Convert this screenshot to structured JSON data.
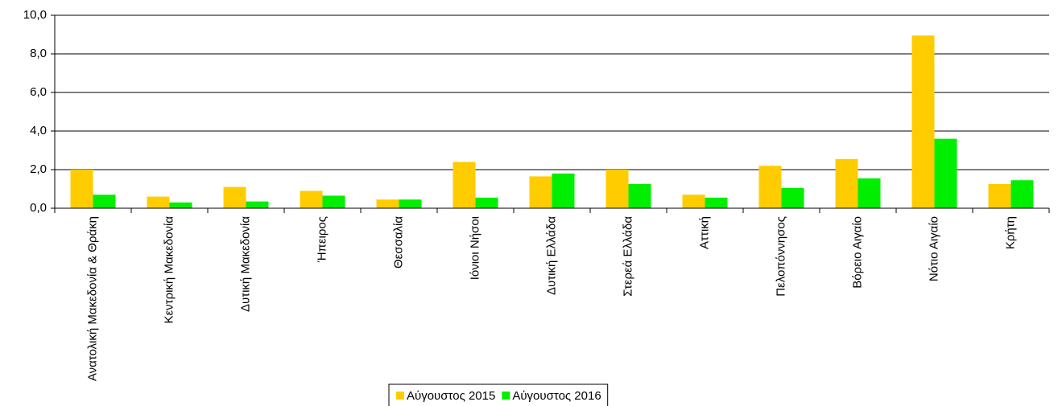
{
  "chart_data": {
    "type": "bar",
    "categories": [
      "Ανατολική Μακεδονία & Θράκη",
      "Κεντρική Μακεδονία",
      "Δυτική Μακεδονία",
      "Ήπειρος",
      "Θεσσαλία",
      "Ιόνιοι Νήσοι",
      "Δυτική Ελλάδα",
      "Στερεά Ελλάδα",
      "Αττική",
      "Πελοπόννησος",
      "Βόρειο Αιγαίο",
      "Νότιο Αιγαίο",
      "Κρήτη"
    ],
    "series": [
      {
        "name": "Αύγουστος 2015",
        "color": "#ffcc00",
        "values": [
          2.0,
          0.6,
          1.1,
          0.9,
          0.45,
          2.4,
          1.65,
          2.0,
          0.7,
          2.2,
          2.55,
          8.95,
          1.25
        ]
      },
      {
        "name": "Αύγουστος 2016",
        "color": "#00ee00",
        "values": [
          0.7,
          0.3,
          0.35,
          0.65,
          0.45,
          0.55,
          1.8,
          1.25,
          0.55,
          1.05,
          1.55,
          3.6,
          1.45
        ]
      }
    ],
    "ylim": [
      0,
      10
    ],
    "yticks": [
      {
        "value": 0,
        "label": "0,0"
      },
      {
        "value": 2,
        "label": "2,0"
      },
      {
        "value": 4,
        "label": "4,0"
      },
      {
        "value": 6,
        "label": "6,0"
      },
      {
        "value": 8,
        "label": "8,0"
      },
      {
        "value": 10,
        "label": "10,0"
      }
    ],
    "grid": true,
    "legend": "bottom"
  }
}
